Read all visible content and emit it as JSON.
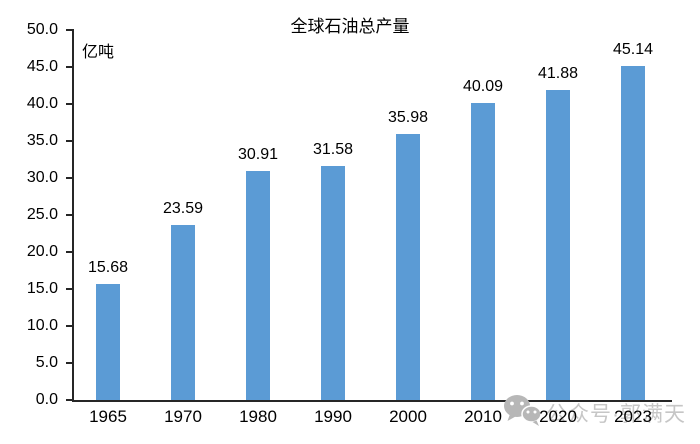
{
  "chart_data": {
    "type": "bar",
    "title": "全球石油总产量",
    "ylabel": "亿吨",
    "xlabel": "",
    "categories": [
      "1965",
      "1970",
      "1980",
      "1990",
      "2000",
      "2010",
      "2020",
      "2023"
    ],
    "values": [
      15.68,
      23.59,
      30.91,
      31.58,
      35.98,
      40.09,
      41.88,
      45.14
    ],
    "value_labels": [
      "15.68",
      "23.59",
      "30.91",
      "31.58",
      "35.98",
      "40.09",
      "41.88",
      "45.14"
    ],
    "ylim": [
      0,
      50
    ],
    "ytick_step": 5,
    "yticks": [
      "50.0",
      "45.0",
      "40.0",
      "35.0",
      "30.0",
      "25.0",
      "20.0",
      "15.0",
      "10.0",
      "5.0",
      "0.0"
    ],
    "grid": false,
    "legend": "none",
    "bar_color": "#5B9BD5",
    "axis_color": "#262626",
    "text_color": "#000000"
  },
  "watermark": {
    "icon": "wechat-icon",
    "text": "公众号·郭满天",
    "text_color": "#c6c6c6",
    "icon_color": "#b7b7b7"
  }
}
